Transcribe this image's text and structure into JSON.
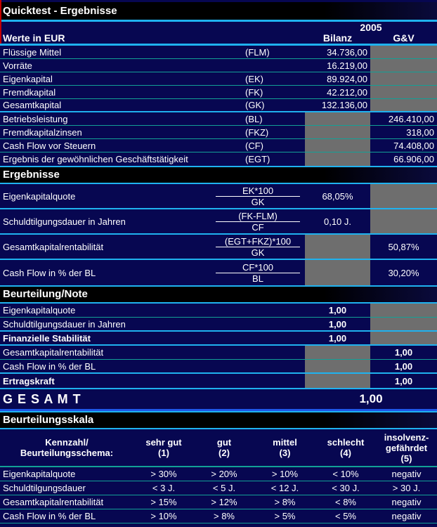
{
  "title": "Quicktest - Ergebnisse",
  "colors": {
    "background": "#070751",
    "section_header": "#000000",
    "cyan_rule": "#1fb2ef",
    "teal_separator": "#12a096",
    "locked_cell_gray": "#6e6e6e",
    "gesamt_rule_blue": "#1e56e8",
    "red_edge": "#c40000",
    "text": "#ffffff"
  },
  "header": {
    "year": "2005",
    "col_bilanz": "Bilanz",
    "col_guv": "G&V",
    "row_label": "Werte in EUR"
  },
  "values": {
    "rows": [
      {
        "label": "Flüssige Mittel",
        "code": "(FLM)",
        "bilanz": "34.736,00"
      },
      {
        "label": "Vorräte",
        "code": "",
        "bilanz": "16.219,00"
      },
      {
        "label": "Eigenkapital",
        "code": "(EK)",
        "bilanz": "89.924,00"
      },
      {
        "label": "Fremdkapital",
        "code": "(FK)",
        "bilanz": "42.212,00"
      },
      {
        "label": "Gesamtkapital",
        "code": "(GK)",
        "bilanz": "132.136,00"
      },
      {
        "label": "Betriebsleistung",
        "code": "(BL)",
        "guv": "246.410,00"
      },
      {
        "label": "Fremdkapitalzinsen",
        "code": "(FKZ)",
        "guv": "318,00"
      },
      {
        "label": "Cash Flow vor Steuern",
        "code": "(CF)",
        "guv": "74.408,00"
      },
      {
        "label": "Ergebnis der gewöhnlichen Geschäftstätigkeit",
        "code": "(EGT)",
        "guv": "66.906,00"
      }
    ]
  },
  "ergebnisse": {
    "title": "Ergebnisse",
    "rows": [
      {
        "label": "Eigenkapitalquote",
        "numerator": "EK*100",
        "denominator": "GK",
        "bilanz": "68,05%"
      },
      {
        "label": "Schuldtilgungsdauer in Jahren",
        "numerator": "(FK-FLM)",
        "denominator": "CF",
        "bilanz": "0,10 J."
      },
      {
        "label": "Gesamtkapitalrentabilität",
        "numerator": "(EGT+FKZ)*100",
        "denominator": "GK",
        "guv": "50,87%"
      },
      {
        "label": "Cash Flow in % der BL",
        "numerator": "CF*100",
        "denominator": "BL",
        "guv": "30,20%"
      }
    ]
  },
  "beurteilung": {
    "title": "Beurteilung/Note",
    "rows": [
      {
        "label": "Eigenkapitalquote",
        "bilanz": "1,00"
      },
      {
        "label": "Schuldtilgungsdauer in Jahren",
        "bilanz": "1,00"
      },
      {
        "label": "Finanzielle Stabilität",
        "bilanz": "1,00"
      },
      {
        "label": "Gesamtkapitalrentabilität",
        "guv": "1,00"
      },
      {
        "label": "Cash Flow in % der BL",
        "guv": "1,00"
      },
      {
        "label": "Ertragskraft",
        "guv": "1,00"
      }
    ]
  },
  "gesamt": {
    "label": "G E S A M T",
    "value": "1,00"
  },
  "skala": {
    "title": "Beurteilungsskala",
    "header": [
      {
        "l1": "Kennzahl/",
        "l2": "Beurteilungsschema:"
      },
      {
        "l1": "sehr gut",
        "l2": "(1)"
      },
      {
        "l1": "gut",
        "l2": "(2)"
      },
      {
        "l1": "mittel",
        "l2": "(3)"
      },
      {
        "l1": "schlecht",
        "l2": "(4)"
      },
      {
        "l1": "insolvenz-",
        "l2": "gefährdet",
        "l3": "(5)"
      }
    ],
    "rows": [
      {
        "label": "Eigenkapitalquote",
        "c1": "> 30%",
        "c2": "> 20%",
        "c3": "> 10%",
        "c4": "< 10%",
        "c5": "negativ"
      },
      {
        "label": "Schuldtilgungsdauer",
        "c1": "< 3 J.",
        "c2": "< 5 J.",
        "c3": "< 12 J.",
        "c4": "< 30 J.",
        "c5": "> 30 J."
      },
      {
        "label": "Gesamtkapitalrentabilität",
        "c1": "> 15%",
        "c2": "> 12%",
        "c3": "> 8%",
        "c4": "< 8%",
        "c5": "negativ"
      },
      {
        "label": "Cash Flow in % der BL",
        "c1": "> 10%",
        "c2": "> 8%",
        "c3": "> 5%",
        "c4": "< 5%",
        "c5": "negativ"
      }
    ]
  }
}
